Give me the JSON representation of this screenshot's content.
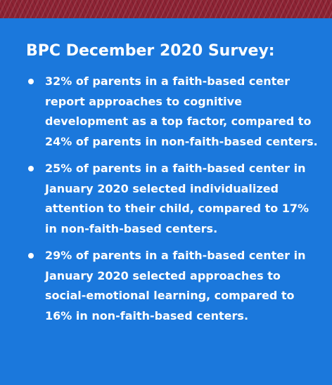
{
  "title": "BPC December 2020 Survey:",
  "bullets": [
    "32% of parents in a faith-based center report approaches to cognitive development as a top factor, compared to 24% of parents in non-faith-based centers.",
    "25% of parents in a faith-based center in January 2020 selected individualized attention to their child, compared to 17% in non-faith-based centers.",
    "29% of parents in a faith-based center in January 2020 selected approaches to social-emotional learning, compared to 16% in non-faith-based centers."
  ],
  "colors": {
    "background": "#1b78dc",
    "top_band": "#8c2233",
    "text": "#ffffff"
  }
}
